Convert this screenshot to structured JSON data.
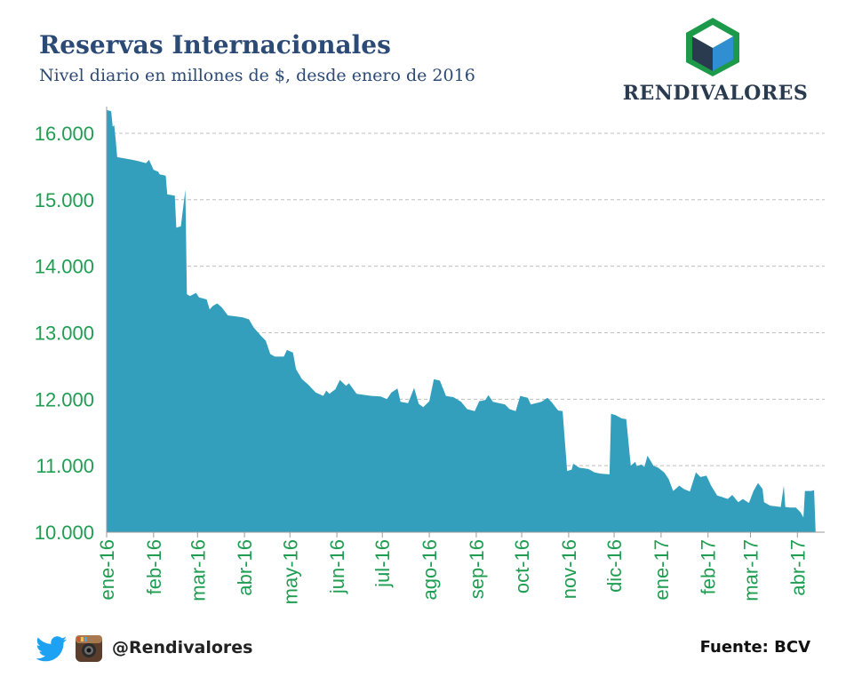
{
  "header": {
    "title": "Reservas Internacionales",
    "subtitle": "Nivel diario en millones de $, desde enero de 2016"
  },
  "brand": {
    "name": "RENDIVALORES"
  },
  "footer": {
    "handle": "@Rendivalores",
    "source": "Fuente: BCV",
    "icons": [
      "twitter-icon",
      "instagram-icon"
    ]
  },
  "colors": {
    "area": "#339fbd",
    "tick_text": "#1f9e52",
    "title": "#2b4a75",
    "grid": "#bfbfbf"
  },
  "chart_data": {
    "type": "area",
    "title": "Reservas Internacionales",
    "subtitle": "Nivel diario en millones de $, desde enero de 2016",
    "ylim": [
      10000,
      16400
    ],
    "yticks": [
      10000,
      11000,
      12000,
      13000,
      14000,
      15000,
      16000
    ],
    "ytick_labels": [
      "10.000",
      "11.000",
      "12.000",
      "13.000",
      "14.000",
      "15.000",
      "16.000"
    ],
    "xlim": [
      "2016-01-01",
      "2017-04-19"
    ],
    "xticks": [
      "2016-01-01",
      "2016-02-01",
      "2016-03-01",
      "2016-04-01",
      "2016-05-01",
      "2016-06-01",
      "2016-07-01",
      "2016-08-01",
      "2016-09-01",
      "2016-10-01",
      "2016-11-01",
      "2016-12-01",
      "2017-01-01",
      "2017-02-01",
      "2017-03-01",
      "2017-04-01"
    ],
    "xtick_labels": [
      "ene-16",
      "feb-16",
      "mar-16",
      "abr-16",
      "may-16",
      "jun-16",
      "jul-16",
      "ago-16",
      "sep-16",
      "oct-16",
      "nov-16",
      "dic-16",
      "ene-17",
      "feb-17",
      "mar-17",
      "abr-17"
    ],
    "grid": "horizontal dashed",
    "legend": "none",
    "points": [
      [
        "2016-01-01",
        16350
      ],
      [
        "2016-01-04",
        16330
      ],
      [
        "2016-01-05",
        16100
      ],
      [
        "2016-01-06",
        16120
      ],
      [
        "2016-01-07",
        15900
      ],
      [
        "2016-01-08",
        15640
      ],
      [
        "2016-01-13",
        15620
      ],
      [
        "2016-01-18",
        15600
      ],
      [
        "2016-01-22",
        15580
      ],
      [
        "2016-01-27",
        15550
      ],
      [
        "2016-01-29",
        15600
      ],
      [
        "2016-02-01",
        15450
      ],
      [
        "2016-02-04",
        15420
      ],
      [
        "2016-02-05",
        15380
      ],
      [
        "2016-02-09",
        15360
      ],
      [
        "2016-02-10",
        15080
      ],
      [
        "2016-02-15",
        15060
      ],
      [
        "2016-02-16",
        14580
      ],
      [
        "2016-02-19",
        14600
      ],
      [
        "2016-02-22",
        15150
      ],
      [
        "2016-02-23",
        13580
      ],
      [
        "2016-02-25",
        13550
      ],
      [
        "2016-02-29",
        13600
      ],
      [
        "2016-03-02",
        13530
      ],
      [
        "2016-03-07",
        13500
      ],
      [
        "2016-03-09",
        13350
      ],
      [
        "2016-03-11",
        13400
      ],
      [
        "2016-03-14",
        13440
      ],
      [
        "2016-03-17",
        13380
      ],
      [
        "2016-03-21",
        13260
      ],
      [
        "2016-03-28",
        13240
      ],
      [
        "2016-03-31",
        13230
      ],
      [
        "2016-04-04",
        13200
      ],
      [
        "2016-04-07",
        13080
      ],
      [
        "2016-04-12",
        12950
      ],
      [
        "2016-04-15",
        12880
      ],
      [
        "2016-04-18",
        12680
      ],
      [
        "2016-04-21",
        12640
      ],
      [
        "2016-04-27",
        12640
      ],
      [
        "2016-04-29",
        12740
      ],
      [
        "2016-05-03",
        12700
      ],
      [
        "2016-05-05",
        12450
      ],
      [
        "2016-05-09",
        12300
      ],
      [
        "2016-05-13",
        12220
      ],
      [
        "2016-05-18",
        12100
      ],
      [
        "2016-05-23",
        12050
      ],
      [
        "2016-05-25",
        12130
      ],
      [
        "2016-05-27",
        12080
      ],
      [
        "2016-05-31",
        12150
      ],
      [
        "2016-06-03",
        12290
      ],
      [
        "2016-06-07",
        12200
      ],
      [
        "2016-06-09",
        12240
      ],
      [
        "2016-06-14",
        12080
      ],
      [
        "2016-06-20",
        12060
      ],
      [
        "2016-06-24",
        12050
      ],
      [
        "2016-06-30",
        12040
      ],
      [
        "2016-07-04",
        12000
      ],
      [
        "2016-07-07",
        12100
      ],
      [
        "2016-07-11",
        12160
      ],
      [
        "2016-07-13",
        11960
      ],
      [
        "2016-07-18",
        11940
      ],
      [
        "2016-07-22",
        12170
      ],
      [
        "2016-07-25",
        11930
      ],
      [
        "2016-07-28",
        11880
      ],
      [
        "2016-08-01",
        11970
      ],
      [
        "2016-08-04",
        12300
      ],
      [
        "2016-08-08",
        12280
      ],
      [
        "2016-08-12",
        12050
      ],
      [
        "2016-08-17",
        12030
      ],
      [
        "2016-08-22",
        11960
      ],
      [
        "2016-08-26",
        11850
      ],
      [
        "2016-08-31",
        11820
      ],
      [
        "2016-09-03",
        11970
      ],
      [
        "2016-09-07",
        11990
      ],
      [
        "2016-09-09",
        12060
      ],
      [
        "2016-09-12",
        11960
      ],
      [
        "2016-09-16",
        11940
      ],
      [
        "2016-09-20",
        11920
      ],
      [
        "2016-09-23",
        11850
      ],
      [
        "2016-09-27",
        11820
      ],
      [
        "2016-09-30",
        12050
      ],
      [
        "2016-10-05",
        12020
      ],
      [
        "2016-10-07",
        11920
      ],
      [
        "2016-10-12",
        11950
      ],
      [
        "2016-10-14",
        11960
      ],
      [
        "2016-10-18",
        12020
      ],
      [
        "2016-10-21",
        11950
      ],
      [
        "2016-10-25",
        11830
      ],
      [
        "2016-10-28",
        11820
      ],
      [
        "2016-10-31",
        10920
      ],
      [
        "2016-11-03",
        10940
      ],
      [
        "2016-11-04",
        11030
      ],
      [
        "2016-11-08",
        10970
      ],
      [
        "2016-11-14",
        10950
      ],
      [
        "2016-11-18",
        10900
      ],
      [
        "2016-11-22",
        10880
      ],
      [
        "2016-11-28",
        10870
      ],
      [
        "2016-11-29",
        11780
      ],
      [
        "2016-12-02",
        11760
      ],
      [
        "2016-12-06",
        11710
      ],
      [
        "2016-12-09",
        11700
      ],
      [
        "2016-12-12",
        11000
      ],
      [
        "2016-12-15",
        11060
      ],
      [
        "2016-12-16",
        10990
      ],
      [
        "2016-12-19",
        11020
      ],
      [
        "2016-12-21",
        10980
      ],
      [
        "2016-12-23",
        11150
      ],
      [
        "2016-12-27",
        11000
      ],
      [
        "2016-12-30",
        10970
      ],
      [
        "2017-01-03",
        10900
      ],
      [
        "2017-01-06",
        10800
      ],
      [
        "2017-01-09",
        10620
      ],
      [
        "2017-01-13",
        10700
      ],
      [
        "2017-01-16",
        10650
      ],
      [
        "2017-01-20",
        10610
      ],
      [
        "2017-01-24",
        10900
      ],
      [
        "2017-01-27",
        10830
      ],
      [
        "2017-01-31",
        10850
      ],
      [
        "2017-02-03",
        10700
      ],
      [
        "2017-02-07",
        10550
      ],
      [
        "2017-02-10",
        10530
      ],
      [
        "2017-02-14",
        10500
      ],
      [
        "2017-02-17",
        10560
      ],
      [
        "2017-02-21",
        10450
      ],
      [
        "2017-02-24",
        10500
      ],
      [
        "2017-02-28",
        10440
      ],
      [
        "2017-03-03",
        10620
      ],
      [
        "2017-03-06",
        10740
      ],
      [
        "2017-03-09",
        10650
      ],
      [
        "2017-03-10",
        10450
      ],
      [
        "2017-03-14",
        10400
      ],
      [
        "2017-03-17",
        10390
      ],
      [
        "2017-03-21",
        10380
      ],
      [
        "2017-03-23",
        10700
      ],
      [
        "2017-03-24",
        10380
      ],
      [
        "2017-03-27",
        10370
      ],
      [
        "2017-03-31",
        10370
      ],
      [
        "2017-04-03",
        10300
      ],
      [
        "2017-04-05",
        10220
      ],
      [
        "2017-04-06",
        10620
      ],
      [
        "2017-04-10",
        10620
      ],
      [
        "2017-04-12",
        10630
      ],
      [
        "2017-04-13",
        10000
      ]
    ]
  }
}
